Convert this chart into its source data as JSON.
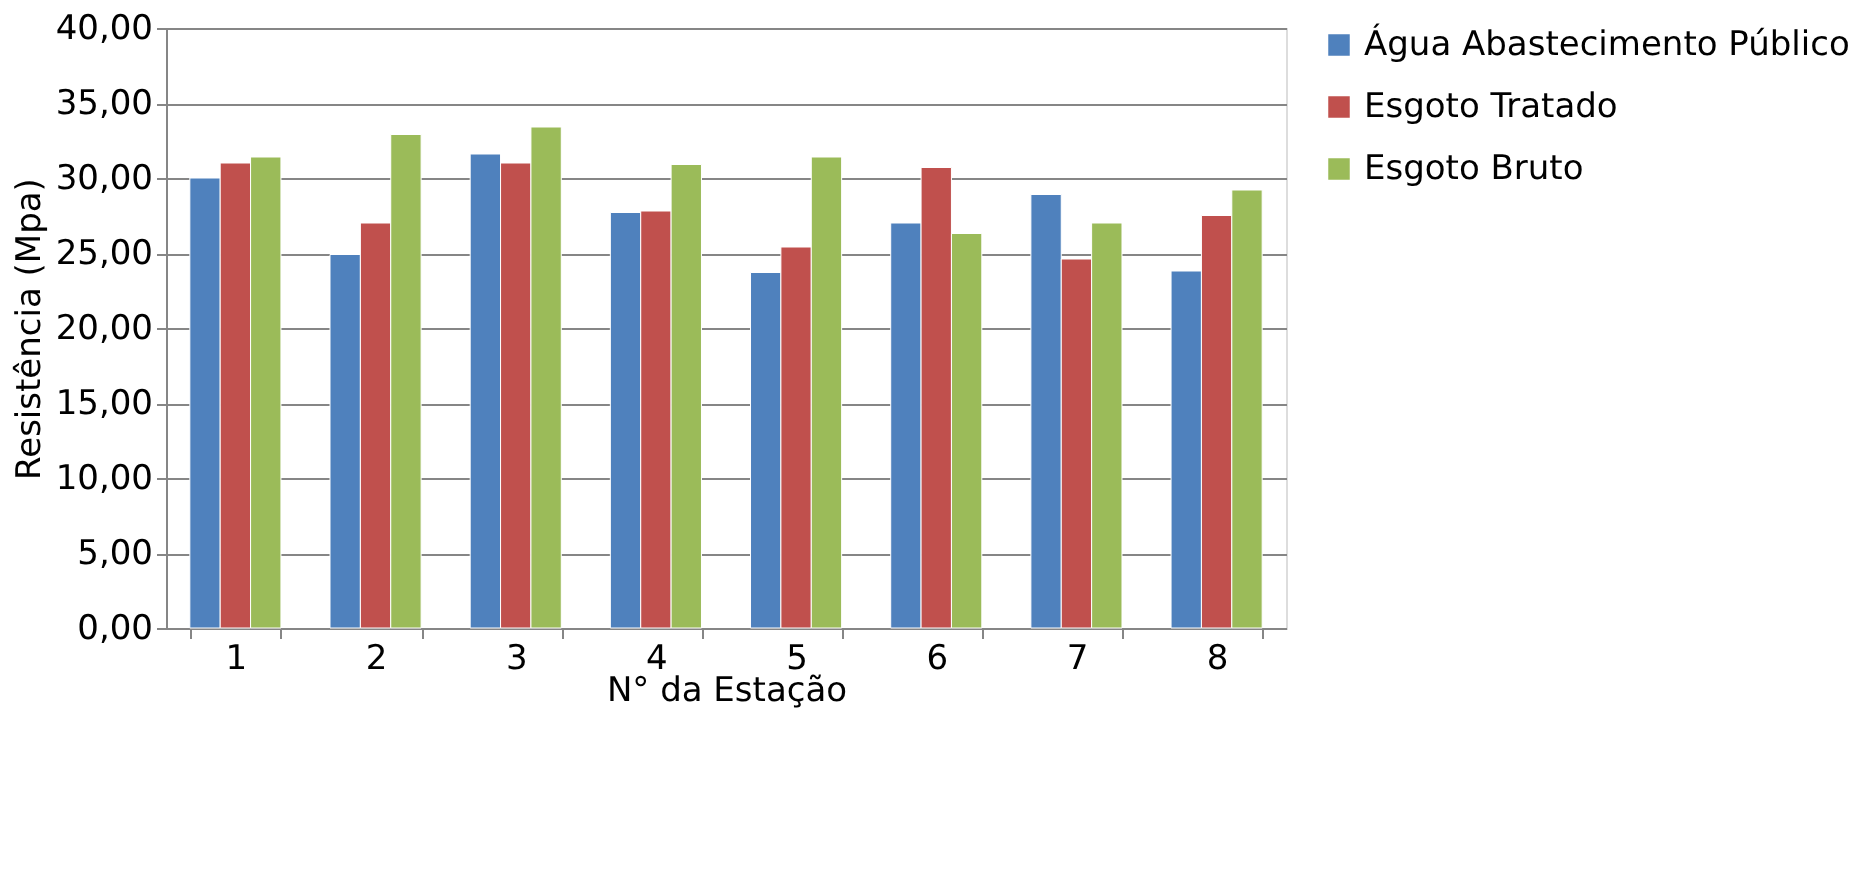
{
  "chart_data": {
    "type": "bar",
    "xlabel": "N° da Estação",
    "ylabel": "Resistência (Mpa)",
    "categories": [
      "1",
      "2",
      "3",
      "4",
      "5",
      "6",
      "7",
      "8"
    ],
    "series": [
      {
        "name": "Água Abastecimento Público",
        "color": "#4f81bd",
        "values": [
          30.0,
          24.9,
          31.6,
          27.7,
          23.7,
          27.0,
          28.9,
          23.8
        ]
      },
      {
        "name": "Esgoto Tratado",
        "color": "#c0504d",
        "values": [
          31.0,
          27.0,
          31.0,
          27.8,
          25.4,
          30.7,
          24.6,
          27.5
        ]
      },
      {
        "name": "Esgoto  Bruto",
        "color": "#9bbb59",
        "values": [
          31.4,
          32.9,
          33.4,
          30.9,
          31.4,
          26.3,
          27.0,
          29.2
        ]
      }
    ],
    "ylim": [
      0,
      40
    ],
    "yticks": [
      {
        "value": 0,
        "label": "0,00"
      },
      {
        "value": 5,
        "label": "5,00"
      },
      {
        "value": 10,
        "label": "10,00"
      },
      {
        "value": 15,
        "label": "15,00"
      },
      {
        "value": 20,
        "label": "20,00"
      },
      {
        "value": 25,
        "label": "25,00"
      },
      {
        "value": 30,
        "label": "30,00"
      },
      {
        "value": 35,
        "label": "35,00"
      },
      {
        "value": 40,
        "label": "40,00"
      }
    ],
    "grid": "y",
    "legend": "right"
  }
}
